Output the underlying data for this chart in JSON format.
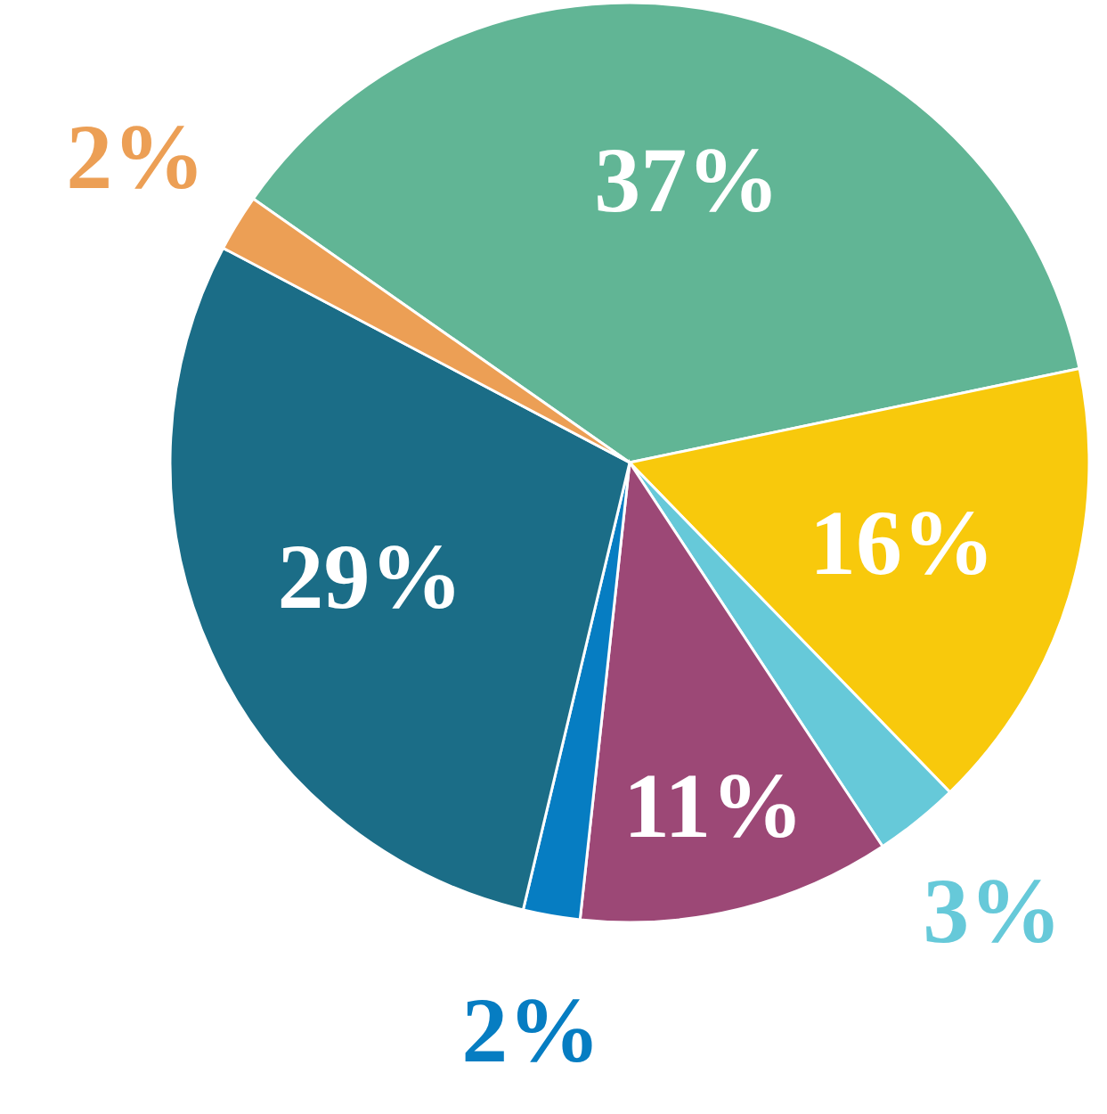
{
  "chart_data": {
    "type": "pie",
    "categories": [
      null,
      null,
      null,
      null,
      null,
      null,
      null
    ],
    "values": [
      37,
      16,
      3,
      11,
      2,
      29,
      2
    ],
    "colors": [
      "#61b595",
      "#f8c90c",
      "#66c9d9",
      "#9c4876",
      "#067dc2",
      "#1b6d87",
      "#ec9f55"
    ],
    "value_labels": [
      "37%",
      "16%",
      "3%",
      "11%",
      "2%",
      "29%",
      "2%"
    ]
  }
}
